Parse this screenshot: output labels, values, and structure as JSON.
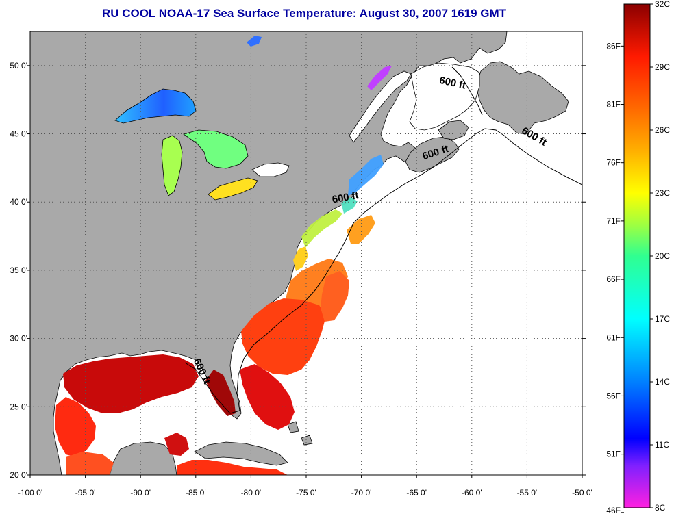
{
  "title": "RU COOL  NOAA-17  Sea Surface Temperature:  August 30, 2007 1619 GMT",
  "map": {
    "lon_range": [
      -100,
      -50
    ],
    "lat_range": [
      20,
      52.5
    ],
    "lon_ticks": [
      {
        "value": -100,
        "label": "-100 0'"
      },
      {
        "value": -95,
        "label": "-95 0'"
      },
      {
        "value": -90,
        "label": "-90 0'"
      },
      {
        "value": -85,
        "label": "-85 0'"
      },
      {
        "value": -80,
        "label": "-80 0'"
      },
      {
        "value": -75,
        "label": "-75 0'"
      },
      {
        "value": -70,
        "label": "-70 0'"
      },
      {
        "value": -65,
        "label": "-65 0'"
      },
      {
        "value": -60,
        "label": "-60 0'"
      },
      {
        "value": -55,
        "label": "-55 0'"
      },
      {
        "value": -50,
        "label": "-50 0'"
      }
    ],
    "lat_ticks": [
      {
        "value": 20,
        "label": "20 0'"
      },
      {
        "value": 25,
        "label": "25 0'"
      },
      {
        "value": 30,
        "label": "30 0'"
      },
      {
        "value": 35,
        "label": "35 0'"
      },
      {
        "value": 40,
        "label": "40 0'"
      },
      {
        "value": 45,
        "label": "45 0'"
      },
      {
        "value": 50,
        "label": "50 0'"
      }
    ],
    "grid": true,
    "contour_labels": [
      {
        "text": "600 ft",
        "lon": -61.8,
        "lat": 48.5,
        "angle": 12
      },
      {
        "text": "600 ft",
        "lon": -54.5,
        "lat": 44.6,
        "angle": 30
      },
      {
        "text": "600 ft",
        "lon": -63.2,
        "lat": 43.4,
        "angle": -18
      },
      {
        "text": "600 ft",
        "lon": -71.4,
        "lat": 40.1,
        "angle": -10
      },
      {
        "text": "600 ft",
        "lon": -84.7,
        "lat": 27.5,
        "angle": 65
      }
    ],
    "colors": {
      "land": "#a9a9a9",
      "ocean_no_data": "#ffffff",
      "coastline": "#000000",
      "grid": "#555555"
    }
  },
  "colorbar": {
    "range_c": [
      8,
      32
    ],
    "celsius_labels": [
      {
        "value": 32,
        "label": "32C"
      },
      {
        "value": 29,
        "label": "29C"
      },
      {
        "value": 26,
        "label": "26C"
      },
      {
        "value": 23,
        "label": "23C"
      },
      {
        "value": 20,
        "label": "20C"
      },
      {
        "value": 17,
        "label": "17C"
      },
      {
        "value": 14,
        "label": "14C"
      },
      {
        "value": 11,
        "label": "11C"
      },
      {
        "value": 8,
        "label": "8C"
      }
    ],
    "fahrenheit_labels": [
      {
        "value": 86,
        "label": "86F"
      },
      {
        "value": 81,
        "label": "81F"
      },
      {
        "value": 76,
        "label": "76F"
      },
      {
        "value": 71,
        "label": "71F"
      },
      {
        "value": 66,
        "label": "66F"
      },
      {
        "value": 61,
        "label": "61F"
      },
      {
        "value": 56,
        "label": "56F"
      },
      {
        "value": 51,
        "label": "51F"
      },
      {
        "value": 46,
        "label": "46F"
      }
    ],
    "gradient_stops": [
      {
        "c": 32,
        "color": "#8b0000"
      },
      {
        "c": 29.5,
        "color": "#ff1a00"
      },
      {
        "c": 27,
        "color": "#ff6a00"
      },
      {
        "c": 25,
        "color": "#ffb000"
      },
      {
        "c": 23,
        "color": "#ffff00"
      },
      {
        "c": 21.5,
        "color": "#a0ff40"
      },
      {
        "c": 20,
        "color": "#30ff90"
      },
      {
        "c": 17,
        "color": "#00ffff"
      },
      {
        "c": 14,
        "color": "#0080ff"
      },
      {
        "c": 11.3,
        "color": "#0000ff"
      },
      {
        "c": 10,
        "color": "#8020ff"
      },
      {
        "c": 8,
        "color": "#ff20e0"
      }
    ]
  }
}
